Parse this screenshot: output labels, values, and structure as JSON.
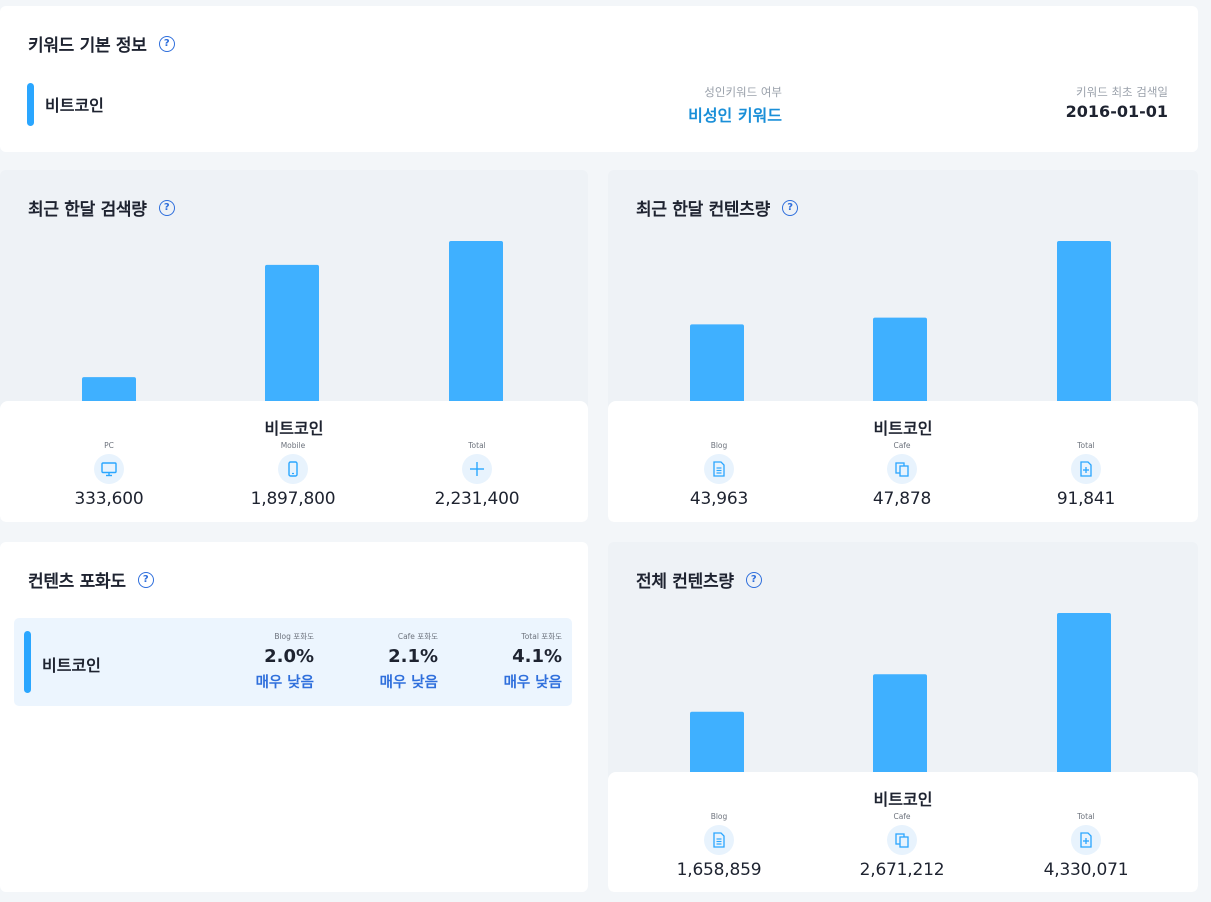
{
  "basic": {
    "title": "키워드 기본 정보",
    "keyword": "비트코인",
    "adult_label": "성인키워드 여부",
    "adult_value": "비성인 키워드",
    "first_search_label": "키워드 최초 검색일",
    "first_search_value": "2016-01-01"
  },
  "monthly_search": {
    "title": "최근 한달 검색량",
    "keyword": "비트코인",
    "items": [
      {
        "label": "PC",
        "icon": "monitor-icon",
        "value": "333,600"
      },
      {
        "label": "Mobile",
        "icon": "mobile-icon",
        "value": "1,897,800"
      },
      {
        "label": "Total",
        "icon": "plus-icon",
        "value": "2,231,400"
      }
    ]
  },
  "monthly_content": {
    "title": "최근 한달 컨텐츠량",
    "keyword": "비트코인",
    "items": [
      {
        "label": "Blog",
        "icon": "document-icon",
        "value": "43,963"
      },
      {
        "label": "Cafe",
        "icon": "copy-icon",
        "value": "47,878"
      },
      {
        "label": "Total",
        "icon": "file-plus-icon",
        "value": "91,841"
      }
    ]
  },
  "saturation": {
    "title": "컨텐츠 포화도",
    "keyword": "비트코인",
    "items": [
      {
        "label": "Blog 포화도",
        "value": "2.0%",
        "level": "매우 낮음"
      },
      {
        "label": "Cafe 포화도",
        "value": "2.1%",
        "level": "매우 낮음"
      },
      {
        "label": "Total 포화도",
        "value": "4.1%",
        "level": "매우 낮음"
      }
    ]
  },
  "total_content": {
    "title": "전체 컨텐츠량",
    "keyword": "비트코인",
    "items": [
      {
        "label": "Blog",
        "icon": "document-icon",
        "value": "1,658,859"
      },
      {
        "label": "Cafe",
        "icon": "copy-icon",
        "value": "2,671,212"
      },
      {
        "label": "Total",
        "icon": "file-plus-icon",
        "value": "4,330,071"
      }
    ]
  },
  "chart_data": [
    {
      "type": "bar",
      "categories": [
        "PC",
        "Mobile",
        "Total"
      ],
      "values": [
        333600,
        1897800,
        2231400
      ]
    },
    {
      "type": "bar",
      "categories": [
        "Blog",
        "Cafe",
        "Total"
      ],
      "values": [
        43963,
        47878,
        91841
      ]
    },
    {
      "type": "bar",
      "categories": [
        "Blog",
        "Cafe",
        "Total"
      ],
      "values": [
        1658859,
        2671212,
        4330071
      ]
    }
  ],
  "colors": {
    "bar": "#3fb0ff",
    "accent_blue": "#1a8fd8",
    "level_blue": "#2f6fdc",
    "icon_bg": "#e8f3fd"
  },
  "help_icon": "question-circle-icon"
}
